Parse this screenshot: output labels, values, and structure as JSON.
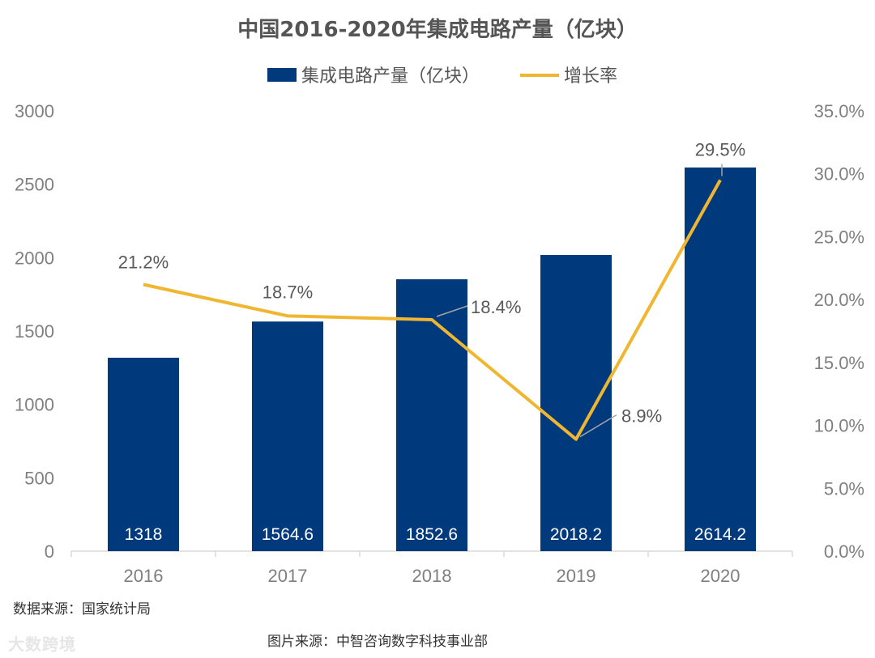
{
  "chart_data": {
    "type": "bar",
    "title": "中国2016-2020年集成电路产量（亿块）",
    "categories": [
      "2016",
      "2017",
      "2018",
      "2019",
      "2020"
    ],
    "series": [
      {
        "name": "集成电路产量（亿块）",
        "kind": "bar",
        "axis": "left",
        "values": [
          1318,
          1564.6,
          1852.6,
          2018.2,
          2614.2
        ],
        "labels": [
          "1318",
          "1564.6",
          "1852.6",
          "2018.2",
          "2614.2"
        ]
      },
      {
        "name": "增长率",
        "kind": "line",
        "axis": "right",
        "values": [
          21.2,
          18.7,
          18.4,
          8.9,
          29.5
        ],
        "labels": [
          "21.2%",
          "18.7%",
          "18.4%",
          "8.9%",
          "29.5%"
        ]
      }
    ],
    "ylim_left": [
      0,
      3000
    ],
    "yticks_left": [
      "0",
      "500",
      "1000",
      "1500",
      "2000",
      "2500",
      "3000"
    ],
    "ylim_right": [
      0,
      35
    ],
    "yticks_right": [
      "0.0%",
      "5.0%",
      "10.0%",
      "15.0%",
      "20.0%",
      "25.0%",
      "30.0%",
      "35.0%"
    ],
    "legend_position": "top-center",
    "grid": false,
    "colors": {
      "bar": "#003a7d",
      "line": "#f0b630",
      "leader": "#a6a6a6",
      "axis": "#d9d9d9"
    }
  },
  "footer": {
    "data_source": "数据来源：国家统计局",
    "image_source": "图片来源：中智咨询数字科技事业部"
  },
  "watermark": "大数跨境"
}
